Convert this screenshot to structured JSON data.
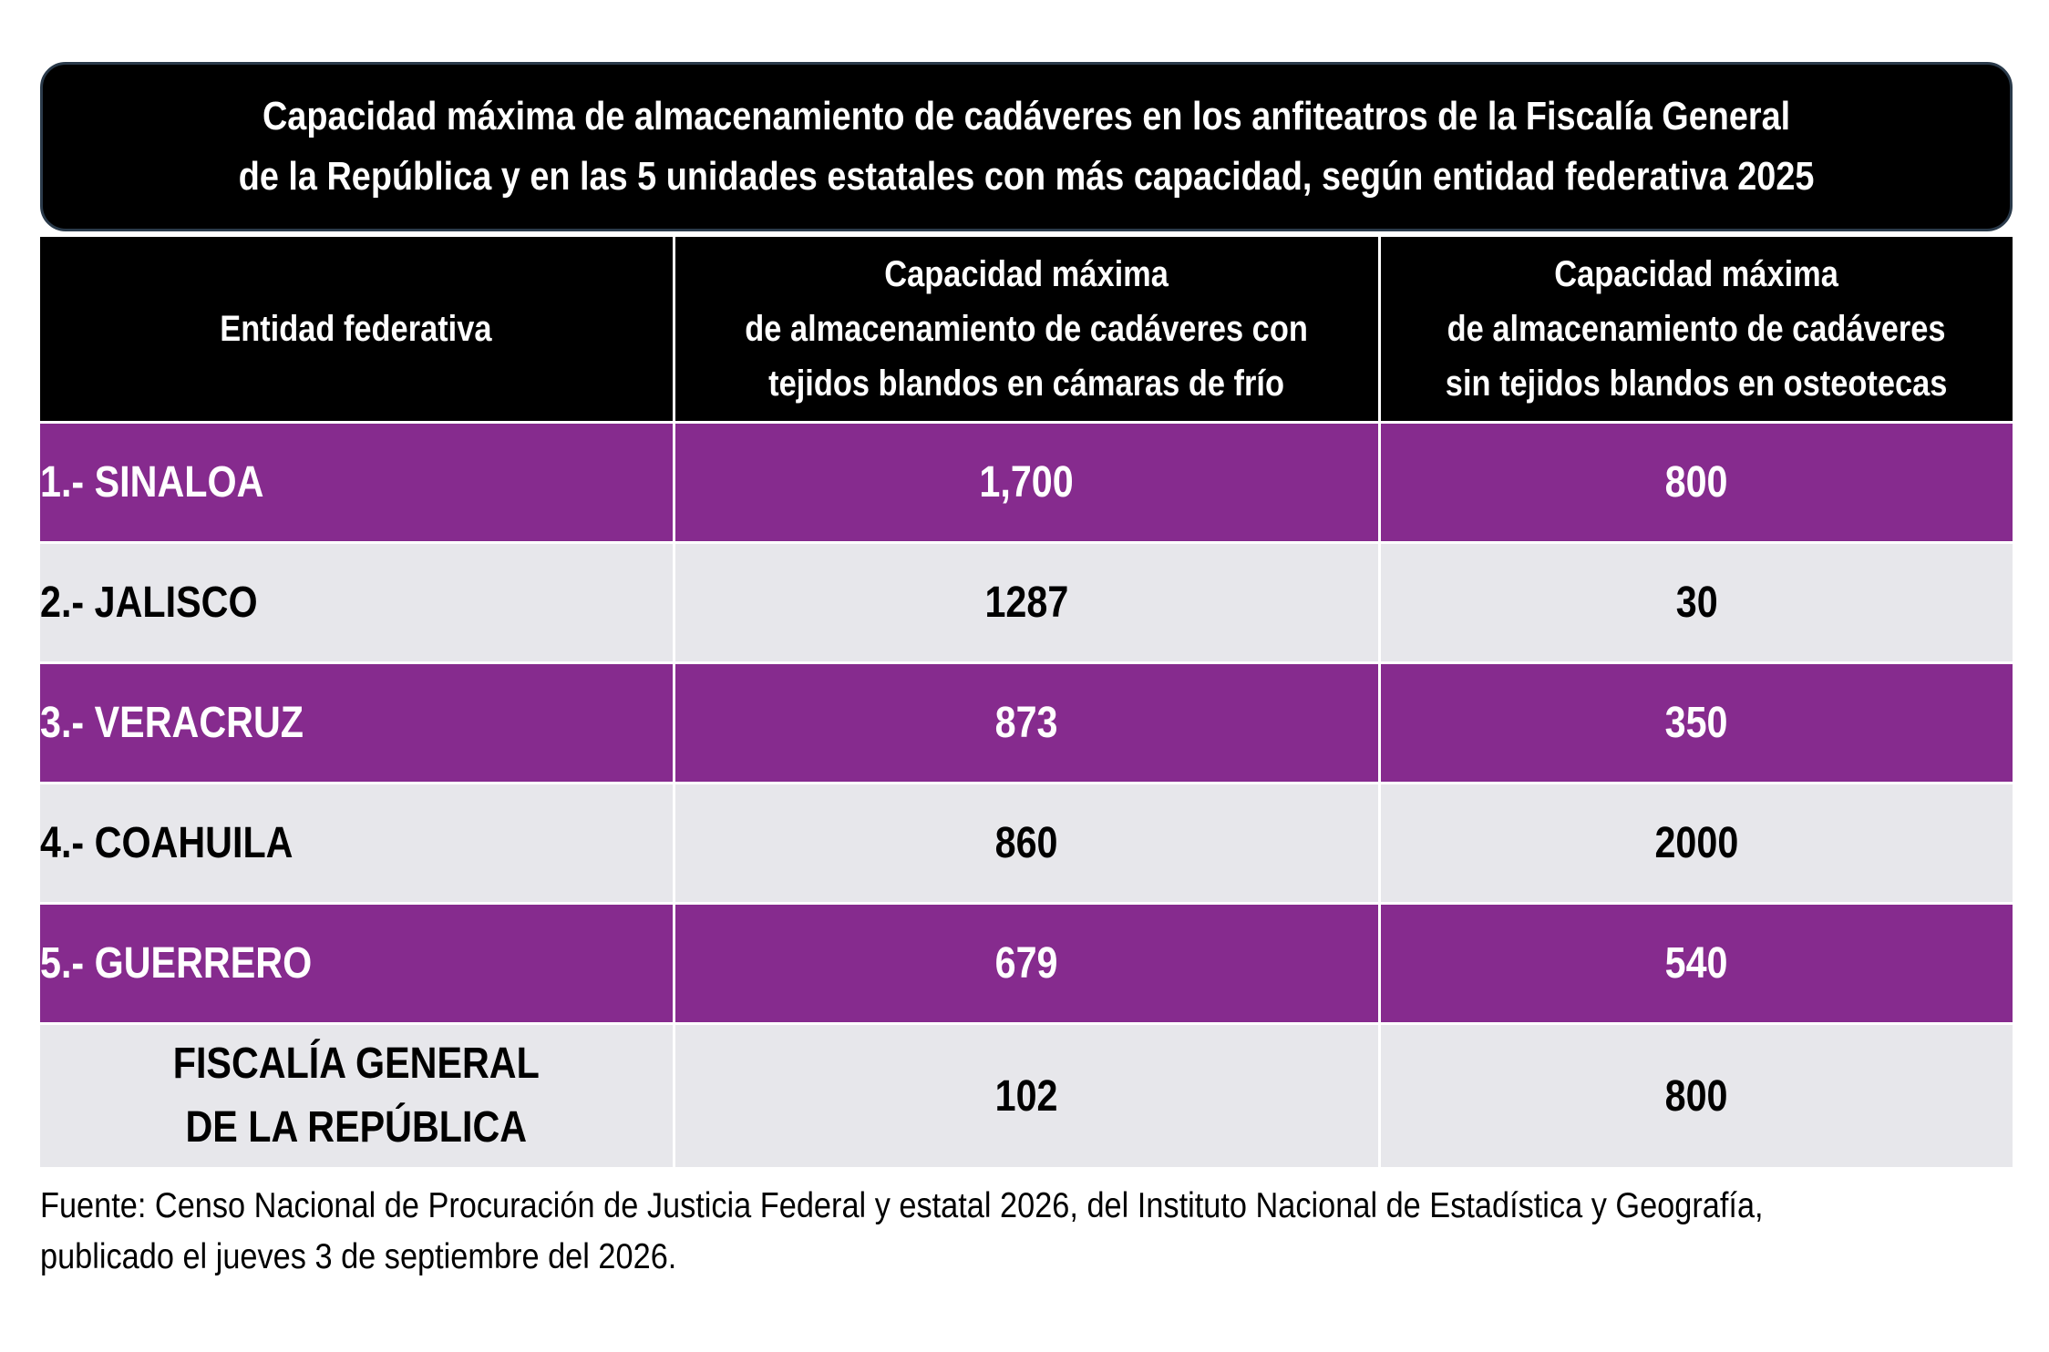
{
  "title": {
    "line1": "Capacidad máxima de almacenamiento de cadáveres en los anfiteatros de la Fiscalía General",
    "line2": "de la República y en las 5 unidades estatales con más capacidad, según entidad federativa 2025"
  },
  "chart_data": {
    "type": "table",
    "headers": {
      "col1": "Entidad federativa",
      "col2": {
        "line1": "Capacidad máxima",
        "line2": "de almacenamiento de cadáveres con",
        "line3": "tejidos blandos en cámaras de frío"
      },
      "col3": {
        "line1": "Capacidad máxima",
        "line2": "de almacenamiento de cadáveres",
        "line3": "sin tejidos blandos en osteotecas"
      }
    },
    "rows": [
      {
        "entidad": "1.- SINALOA",
        "camaras_frio": "1,700",
        "osteotecas": "800"
      },
      {
        "entidad": "2.- JALISCO",
        "camaras_frio": "1287",
        "osteotecas": "30"
      },
      {
        "entidad": "3.- VERACRUZ",
        "camaras_frio": "873",
        "osteotecas": "350"
      },
      {
        "entidad": "4.- COAHUILA",
        "camaras_frio": "860",
        "osteotecas": "2000"
      },
      {
        "entidad": "5.- GUERRERO",
        "camaras_frio": "679",
        "osteotecas": "540"
      },
      {
        "entidad_line1": "FISCALÍA GENERAL",
        "entidad_line2": "DE LA REPÚBLICA",
        "camaras_frio": "102",
        "osteotecas": "800"
      }
    ],
    "colors": {
      "header_bg": "#000000",
      "row_purple": "#862b8e",
      "row_gray": "#e7e7eb"
    }
  },
  "source": {
    "line1": "Fuente: Censo Nacional de Procuración de Justicia Federal y estatal 2026, del Instituto Nacional de Estadística y Geografía,",
    "line2": "publicado el jueves 3 de septiembre del 2026."
  }
}
